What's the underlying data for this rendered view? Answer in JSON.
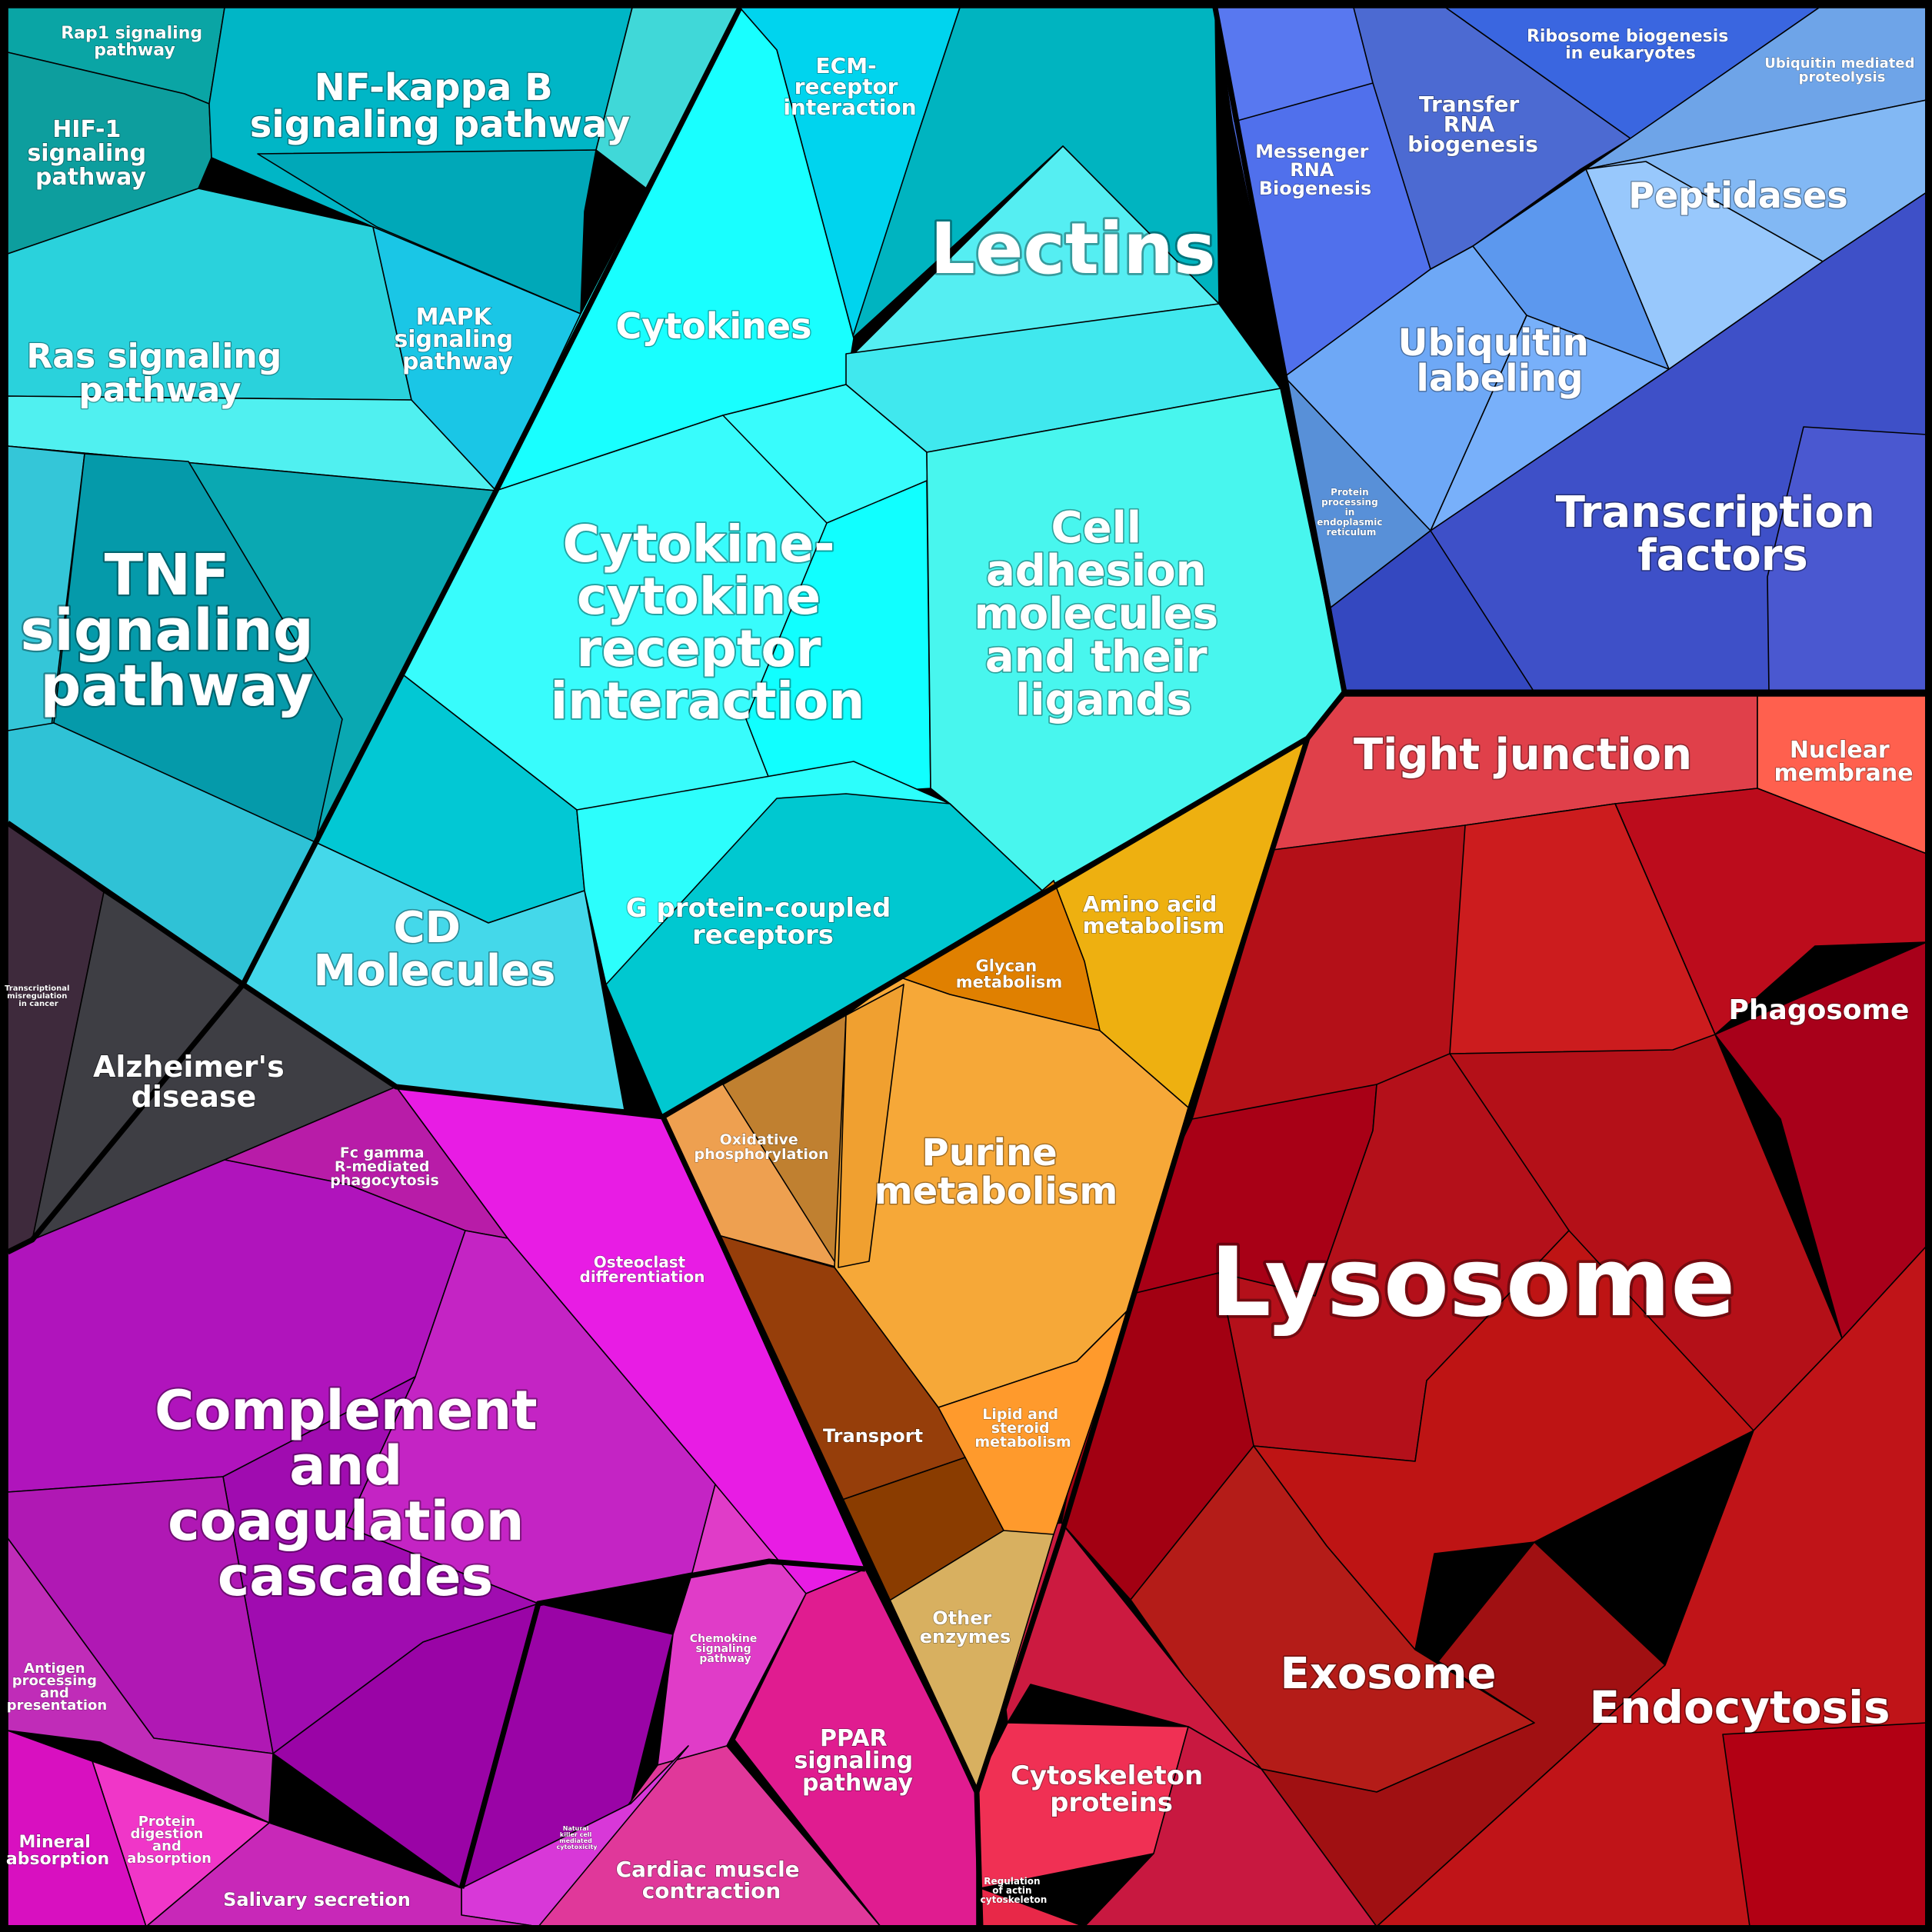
{
  "groups": {
    "signaling": {
      "color": "#14b8c8"
    },
    "immune": {
      "color": "#19ffff"
    },
    "genetic_info": {
      "color": "#4a6ee0"
    },
    "cellular_processes": {
      "color": "#c81010"
    },
    "metabolism": {
      "color": "#f0a030"
    },
    "human_disease": {
      "color": "#3c3c44"
    },
    "organismal_systems": {
      "color": "#c020c0"
    }
  },
  "labels": {
    "rap1": "Rap1 signaling pathway",
    "nfkb": "NF-kappa B signaling pathway",
    "hif1": "HIF-1 signaling pathway",
    "ecm": "ECM-receptor interaction",
    "lectins": "Lectins",
    "cytokines": "Cytokines",
    "ras": "Ras signaling pathway",
    "mapk": "MAPK signaling pathway",
    "tnf": "TNF signaling pathway",
    "cytokine_receptor": "Cytokine-cytokine receptor interaction",
    "cell_adhesion": "Cell adhesion molecules and their ligands",
    "cd": "CD Molecules",
    "gpcr": "G protein-coupled receptors",
    "ribosome": "Ribosome biogenesis in eukaryotes",
    "ubiq_proteolysis": "Ubiquitin mediated proteolysis",
    "mrna": "Messenger RNA Biogenesis",
    "trna": "Transfer RNA biogenesis",
    "peptidases": "Peptidases",
    "ubiq_labeling": "Ubiquitin labeling",
    "protein_er": "Protein processing in endoplasmic reticulum",
    "tfs": "Transcription factors",
    "tight_junction": "Tight junction",
    "nuclear_membrane": "Nuclear membrane",
    "phagosome": "Phagosome",
    "lysosome": "Lysosome",
    "exosome": "Exosome",
    "endocytosis": "Endocytosis",
    "cytoskeleton": "Cytoskeleton proteins",
    "reg_actin": "Regulation of actin cytoskeleton",
    "amino_acid": "Amino acid metabolism",
    "glycan": "Glycan metabolism",
    "oxphos": "Oxidative phosphorylation",
    "purine": "Purine metabolism",
    "transport": "Transport",
    "lipid": "Lipid and steroid metabolism",
    "other_enzymes": "Other enzymes",
    "transcriptional_misreg": "Transcriptional misregulation in cancer",
    "alzheimers": "Alzheimer's disease",
    "fc_gamma": "Fc gamma R-mediated phagocytosis",
    "osteoclast": "Osteoclast differentiation",
    "complement": "Complement and coagulation cascades",
    "antigen": "Antigen processing and presentation",
    "chemokine": "Chemokine signaling pathway",
    "ppar": "PPAR signaling pathway",
    "mineral": "Mineral absorption",
    "protein_digestion": "Protein digestion and absorption",
    "salivary": "Salivary secretion",
    "nk": "Natural killer cell mediated cytotoxicity",
    "cardiac": "Cardiac muscle contraction"
  }
}
